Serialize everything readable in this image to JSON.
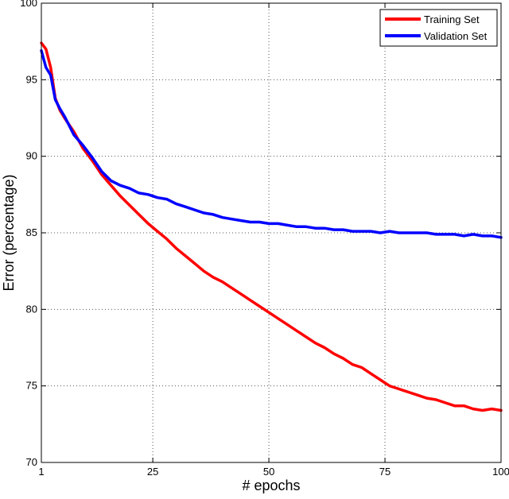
{
  "chart_data": {
    "type": "line",
    "title": "",
    "xlabel": "# epochs",
    "ylabel": "Error (percentage)",
    "xlim": [
      1,
      100
    ],
    "ylim": [
      70,
      100
    ],
    "xticks": [
      1,
      25,
      50,
      75,
      100
    ],
    "yticks": [
      70,
      75,
      80,
      85,
      90,
      95,
      100
    ],
    "grid": true,
    "legend_position": "top-right",
    "series": [
      {
        "name": "Training Set",
        "color": "#ff0000",
        "x": [
          1,
          2,
          3,
          4,
          5,
          6,
          8,
          10,
          12,
          14,
          16,
          18,
          20,
          22,
          24,
          26,
          28,
          30,
          32,
          34,
          36,
          38,
          40,
          42,
          44,
          46,
          48,
          50,
          52,
          54,
          56,
          58,
          60,
          62,
          64,
          66,
          68,
          70,
          72,
          74,
          76,
          78,
          80,
          82,
          84,
          86,
          88,
          90,
          92,
          94,
          96,
          98,
          100
        ],
        "y": [
          97.4,
          97.0,
          95.8,
          93.8,
          93.0,
          92.5,
          91.6,
          90.5,
          89.7,
          88.8,
          88.1,
          87.4,
          86.8,
          86.2,
          85.6,
          85.1,
          84.6,
          84.0,
          83.5,
          83.0,
          82.5,
          82.1,
          81.8,
          81.4,
          81.0,
          80.6,
          80.2,
          79.8,
          79.4,
          79.0,
          78.6,
          78.2,
          77.8,
          77.5,
          77.1,
          76.8,
          76.4,
          76.2,
          75.8,
          75.4,
          75.0,
          74.8,
          74.6,
          74.4,
          74.2,
          74.1,
          73.9,
          73.7,
          73.7,
          73.5,
          73.4,
          73.5,
          73.4
        ]
      },
      {
        "name": "Validation Set",
        "color": "#0000ff",
        "x": [
          1,
          2,
          3,
          4,
          5,
          6,
          8,
          10,
          12,
          14,
          16,
          18,
          20,
          22,
          24,
          26,
          28,
          30,
          32,
          34,
          36,
          38,
          40,
          42,
          44,
          46,
          48,
          50,
          52,
          54,
          56,
          58,
          60,
          62,
          64,
          66,
          68,
          70,
          72,
          74,
          76,
          78,
          80,
          82,
          84,
          86,
          88,
          90,
          92,
          94,
          96,
          98,
          100
        ],
        "y": [
          96.9,
          95.8,
          95.3,
          93.7,
          93.1,
          92.6,
          91.4,
          90.7,
          89.9,
          89.0,
          88.4,
          88.1,
          87.9,
          87.6,
          87.5,
          87.3,
          87.2,
          86.9,
          86.7,
          86.5,
          86.3,
          86.2,
          86.0,
          85.9,
          85.8,
          85.7,
          85.7,
          85.6,
          85.6,
          85.5,
          85.4,
          85.4,
          85.3,
          85.3,
          85.2,
          85.2,
          85.1,
          85.1,
          85.1,
          85.0,
          85.1,
          85.0,
          85.0,
          85.0,
          85.0,
          84.9,
          84.9,
          84.9,
          84.8,
          84.9,
          84.8,
          84.8,
          84.7
        ]
      }
    ]
  }
}
